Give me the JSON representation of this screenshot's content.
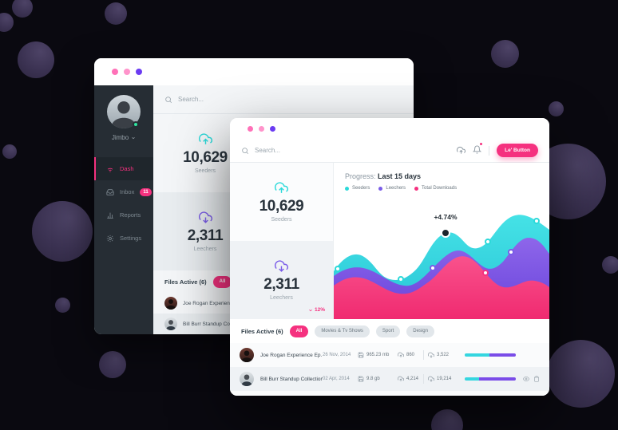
{
  "colors": {
    "accent_pink": "#F5317F",
    "teal": "#2BD9D9",
    "purple": "#7A5CE8",
    "sidebar_dark": "#262D34",
    "status_green": "#2EE6A0",
    "background": "#0A0910"
  },
  "back_window": {
    "sidebar": {
      "username": "Jimbo",
      "menu": [
        {
          "label": "Dash",
          "icon": "dash-icon",
          "active": true
        },
        {
          "label": "Inbox",
          "icon": "inbox-icon",
          "badge": "11"
        },
        {
          "label": "Reports",
          "icon": "reports-icon"
        },
        {
          "label": "Settings",
          "icon": "settings-icon"
        }
      ]
    },
    "search": {
      "placeholder": "Search..."
    },
    "stats": [
      {
        "value": "10,629",
        "label": "Seeders",
        "icon": "upload-cloud-icon"
      },
      {
        "value": "2,311",
        "label": "Leechers",
        "icon": "download-cloud-icon"
      }
    ],
    "files": {
      "label": "Files Active (6)",
      "filters": [
        {
          "label": "All",
          "active": true
        },
        {
          "label": "Movies & Tv Shows",
          "active": false
        }
      ],
      "rows": [
        {
          "name": "Joe Rogan Experience Ep. 468"
        },
        {
          "name": "Bill Burr Standup Collection"
        }
      ]
    }
  },
  "front_window": {
    "search": {
      "placeholder": "Search..."
    },
    "toolbar": {
      "button_label": "Le' Button"
    },
    "stats": [
      {
        "value": "10,629",
        "label": "Seeders",
        "icon": "upload-cloud-icon"
      },
      {
        "value": "2,311",
        "label": "Leechers",
        "icon": "download-cloud-icon",
        "delta": "12%"
      }
    ],
    "chart": {
      "title_prefix": "Progress:",
      "title": "Last 15 days",
      "annotation": "+4.74%",
      "legend": [
        {
          "label": "Seeders",
          "color": "#2BD9D9"
        },
        {
          "label": "Leechers",
          "color": "#7A5CE8"
        },
        {
          "label": "Total Downloads",
          "color": "#F5317F"
        }
      ]
    },
    "files": {
      "label": "Files Active (6)",
      "filters": [
        {
          "label": "All",
          "active": true
        },
        {
          "label": "Movies & Tv Shows",
          "active": false
        },
        {
          "label": "Sport",
          "active": false
        },
        {
          "label": "Design",
          "active": false
        }
      ],
      "rows": [
        {
          "name": "Joe Rogan Experience Ep. 468",
          "date": "26 Nov, 2014",
          "size": "965.23 mb",
          "seeds": "860",
          "peers": "3,522",
          "progress": {
            "teal": 48,
            "purple": 52
          }
        },
        {
          "name": "Bill Burr Standup Collection",
          "date": "02 Apr, 2014",
          "size": "9.8 gb",
          "seeds": "4,214",
          "peers": "19,214",
          "progress": {
            "teal": 28,
            "purple": 72
          }
        }
      ]
    }
  },
  "chart_data": {
    "type": "area",
    "title": "Progress: Last 15 days",
    "legend_position": "top-left",
    "grid": false,
    "annotation": {
      "text": "+4.74%",
      "series": "Seeders"
    },
    "x": [
      1,
      2,
      3,
      4,
      5,
      6,
      7,
      8
    ],
    "series": [
      {
        "name": "Seeders",
        "color": "#2BD9D9",
        "values": [
          40,
          52,
          33,
          41,
          71,
          63,
          87,
          75
        ]
      },
      {
        "name": "Leechers",
        "color": "#7A5CE8",
        "values": [
          36,
          42,
          28,
          45,
          57,
          48,
          68,
          55
        ]
      },
      {
        "name": "Total Downloads",
        "color": "#F5317F",
        "values": [
          28,
          34,
          21,
          31,
          52,
          39,
          27,
          32
        ]
      }
    ]
  }
}
